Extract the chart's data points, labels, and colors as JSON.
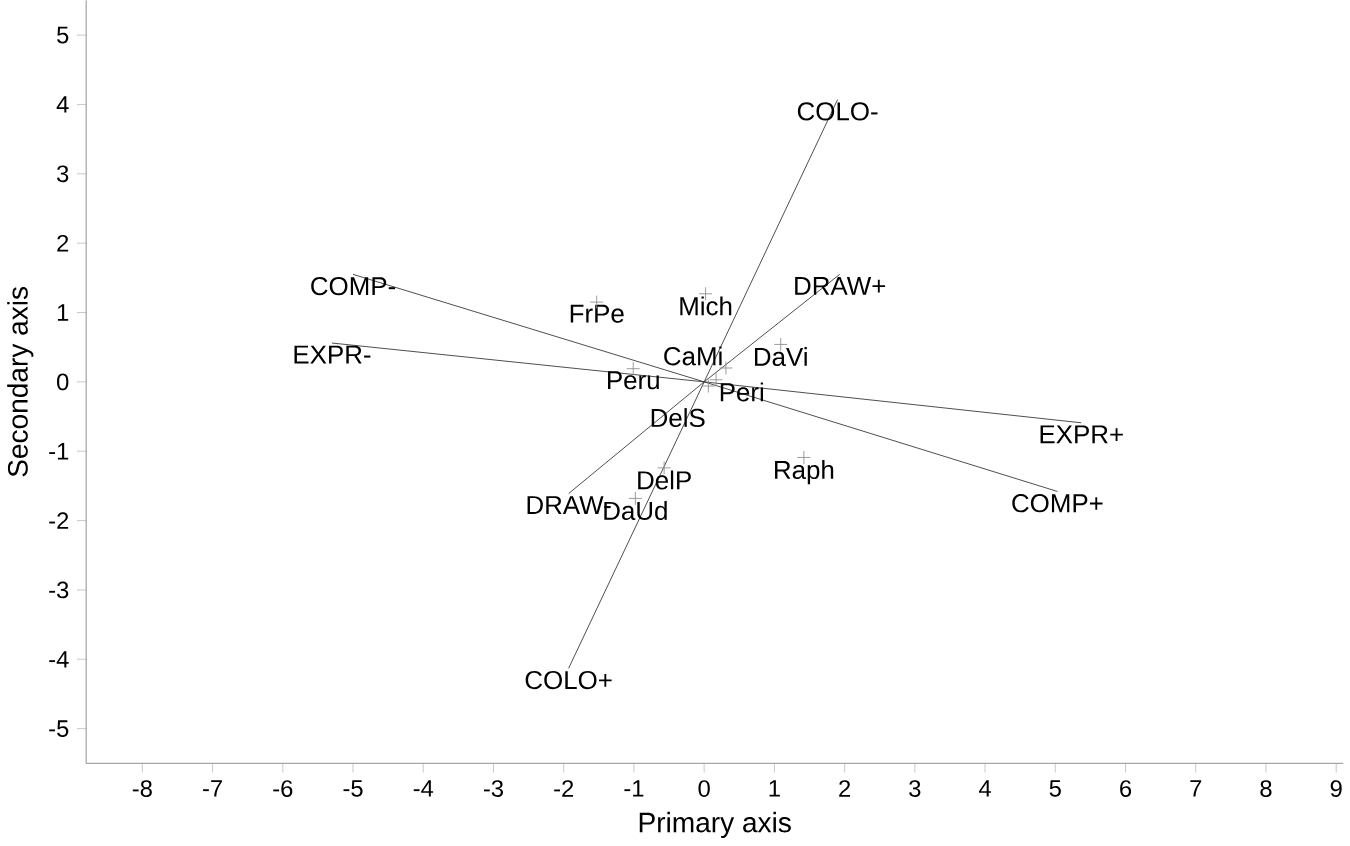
{
  "chart_data": {
    "type": "scatter",
    "xlabel": "Primary axis",
    "ylabel": "Secondary axis",
    "xlim": [
      -8.8,
      9.1
    ],
    "ylim": [
      -5.5,
      5.5
    ],
    "xticks": [
      -8,
      -7,
      -6,
      -5,
      -4,
      -3,
      -2,
      -1,
      0,
      1,
      2,
      3,
      4,
      5,
      6,
      7,
      8,
      9
    ],
    "yticks": [
      -5,
      -4,
      -3,
      -2,
      -1,
      0,
      1,
      2,
      3,
      4,
      5
    ],
    "grid": false,
    "legend": false,
    "marker": "cross",
    "series": [
      {
        "color": "#8c8c8c",
        "x": [
          -1.53,
          0.02,
          -1.01,
          1.09,
          0.31,
          0.17,
          0.06,
          -0.57,
          -0.98,
          1.42
        ],
        "values": [
          1.15,
          1.27,
          0.19,
          0.54,
          0.2,
          0.03,
          -0.06,
          -1.24,
          -1.68,
          -1.09
        ]
      },
      {
        "type": "line",
        "marker": "none",
        "name": "COLO-",
        "color": "#333333",
        "x": [
          0,
          1.9
        ],
        "values": [
          0,
          4.07
        ]
      },
      {
        "type": "line",
        "marker": "none",
        "name": "COLO+",
        "color": "#333333",
        "x": [
          0,
          -1.93
        ],
        "values": [
          0,
          -4.13
        ]
      },
      {
        "type": "line",
        "marker": "none",
        "name": "DRAW+",
        "color": "#333333",
        "x": [
          0,
          1.93
        ],
        "values": [
          0,
          1.55
        ]
      },
      {
        "type": "line",
        "marker": "none",
        "name": "DRAW-",
        "color": "#333333",
        "x": [
          0,
          -1.93
        ],
        "values": [
          0,
          -1.61
        ]
      },
      {
        "type": "line",
        "marker": "none",
        "name": "COMP-",
        "color": "#333333",
        "x": [
          0,
          -5.0
        ],
        "values": [
          0,
          1.55
        ]
      },
      {
        "type": "line",
        "marker": "none",
        "name": "COMP+",
        "color": "#333333",
        "x": [
          0,
          5.03
        ],
        "values": [
          0,
          -1.58
        ]
      },
      {
        "type": "line",
        "marker": "none",
        "name": "EXPR-",
        "color": "#333333",
        "x": [
          0,
          -5.3
        ],
        "values": [
          0,
          0.56
        ]
      },
      {
        "type": "line",
        "marker": "none",
        "name": "EXPR+",
        "color": "#333333",
        "x": [
          0,
          5.37
        ],
        "values": [
          0,
          -0.59
        ]
      }
    ],
    "annotations": [
      {
        "text": "FrPe",
        "x": -1.53,
        "y": 1.15
      },
      {
        "text": "Mich",
        "x": 0.02,
        "y": 1.27
      },
      {
        "text": "Peru",
        "x": -1.01,
        "y": 0.19
      },
      {
        "text": "DaVi",
        "x": 1.09,
        "y": 0.54
      },
      {
        "text": "CaMi",
        "x": 0.31,
        "y": 0.2
      },
      {
        "text": "Peri",
        "x": 0.17,
        "y": 0.03
      },
      {
        "text": "DelS",
        "x": 0.06,
        "y": -0.06
      },
      {
        "text": "DelP",
        "x": -0.57,
        "y": -1.24
      },
      {
        "text": "DaUd",
        "x": -0.98,
        "y": -1.68
      },
      {
        "text": "Raph",
        "x": 1.42,
        "y": -1.09
      }
    ]
  }
}
